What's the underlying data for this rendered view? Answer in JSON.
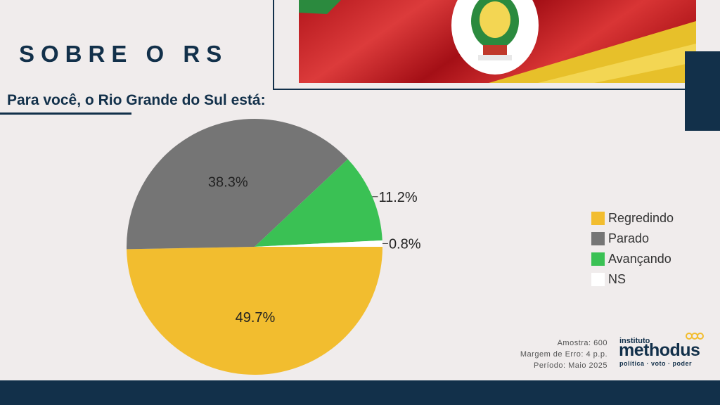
{
  "header": {
    "title": "SOBRE O RS"
  },
  "question": "Para você, o Rio Grande do Sul está:",
  "colors": {
    "navy": "#12304a",
    "yellow": "#f2bd2f",
    "gray": "#757575",
    "green": "#3ac154",
    "white": "#ffffff"
  },
  "chart_data": {
    "type": "pie",
    "categories": [
      "Regredindo",
      "Parado",
      "Avançando",
      "NS"
    ],
    "values": [
      49.7,
      38.3,
      11.2,
      0.8
    ],
    "labels": [
      "49.7%",
      "38.3%",
      "11.2%",
      "0.8%"
    ],
    "colors": [
      "#f2bd2f",
      "#757575",
      "#3ac154",
      "#ffffff"
    ],
    "legend_position": "right"
  },
  "legend": [
    {
      "label": "Regredindo",
      "color": "#f2bd2f"
    },
    {
      "label": "Parado",
      "color": "#757575"
    },
    {
      "label": "Avançando",
      "color": "#3ac154"
    },
    {
      "label": "NS",
      "color": "#ffffff"
    }
  ],
  "meta": {
    "sample": "Amostra: 600",
    "margin": "Margem de Erro: 4 p.p.",
    "period": "Período: Maio 2025"
  },
  "logo": {
    "small": "instituto",
    "main": "methodus",
    "tagline": "política · voto · poder"
  }
}
